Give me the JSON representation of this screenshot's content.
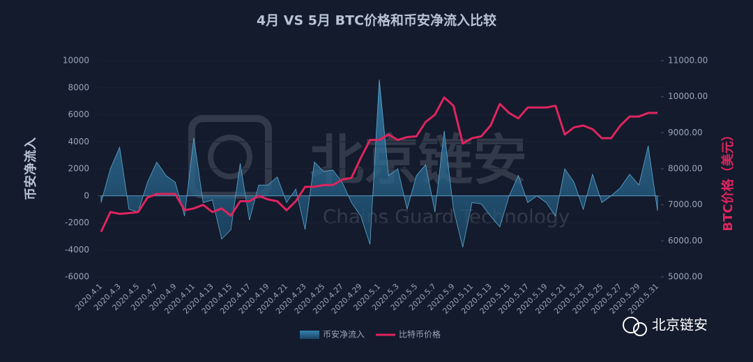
{
  "chart_data": {
    "type": "area-line",
    "title": "4月 VS 5月 BTC价格和币安净流入比较",
    "y_label": "币安净流入",
    "y2_label": "BTC价格（美元）",
    "categories": [
      "2020.4.1",
      null,
      "2020.4.3",
      null,
      "2020.4.5",
      null,
      "2020.4.7",
      null,
      "2020.4.9",
      null,
      "2020.4.11",
      null,
      "2020.4.13",
      null,
      "2020.4.15",
      null,
      "2020.4.17",
      null,
      "2020.4.19",
      null,
      "2020.4.21",
      null,
      "2020.4.23",
      null,
      "2020.4.25",
      null,
      "2020.4.27",
      null,
      "2020.4.29",
      null,
      "2020.5.1",
      null,
      "2020.5.3",
      null,
      "2020.5.5",
      null,
      "2020.5.7",
      null,
      "2020.5.9",
      null,
      "2020.5.11",
      null,
      "2020.5.13",
      null,
      "2020.5.15",
      null,
      "2020.5.17",
      null,
      "2020.5.19",
      null,
      "2020.5.21",
      null,
      "2020.5.23",
      null,
      "2020.5.25",
      null,
      "2020.5.27",
      null,
      "2020.5.29",
      null,
      "2020.5.31"
    ],
    "series": [
      {
        "name": "币安净流入",
        "kind": "area",
        "color": "#2f7aa3",
        "values": [
          -500,
          2000,
          3600,
          -1000,
          -1200,
          1000,
          2500,
          1500,
          1000,
          -1500,
          4300,
          -500,
          -300,
          -3200,
          -2500,
          2400,
          -1800,
          800,
          800,
          1400,
          -500,
          500,
          -2500,
          2500,
          1800,
          1900,
          1000,
          -500,
          -1500,
          -3600,
          8600,
          1500,
          2000,
          -1000,
          1500,
          2300,
          -1200,
          4800,
          -1000,
          -3800,
          -500,
          -600,
          -1500,
          -2300,
          0,
          1500,
          -500,
          0,
          -500,
          -1500,
          2000,
          1000,
          -1000,
          1600,
          -500,
          0,
          600,
          1600,
          800,
          3700,
          -1100
        ]
      },
      {
        "name": "比特币价格",
        "kind": "line",
        "axis": "y2",
        "color": "#e0245e",
        "values": [
          6250,
          6800,
          6750,
          6770,
          6800,
          7200,
          7300,
          7300,
          7300,
          6850,
          6900,
          7000,
          6800,
          6900,
          6700,
          7100,
          7100,
          7250,
          7150,
          7100,
          6850,
          7100,
          7500,
          7500,
          7550,
          7550,
          7700,
          7750,
          8300,
          8800,
          8800,
          8950,
          8800,
          8880,
          8900,
          9300,
          9500,
          9980,
          9750,
          8700,
          8850,
          8900,
          9200,
          9800,
          9550,
          9400,
          9700,
          9700,
          9700,
          9750,
          8950,
          9150,
          9200,
          9100,
          8850,
          8850,
          9200,
          9450,
          9450,
          9550,
          9550
        ]
      }
    ],
    "ylim": [
      -6000,
      10000
    ],
    "yticks": [
      -6000,
      -4000,
      -2000,
      0,
      2000,
      4000,
      6000,
      8000,
      10000
    ],
    "y2lim": [
      5000,
      11000
    ],
    "y2ticks": [
      {
        "value": 5000,
        "label": "5000.00"
      },
      {
        "value": 6000,
        "label": "6000.00"
      },
      {
        "value": 7000,
        "label": "7000.00"
      },
      {
        "value": 8000,
        "label": "8000.00"
      },
      {
        "value": 9000,
        "label": "9000.00"
      },
      {
        "value": 10000,
        "label": "10000.00"
      },
      {
        "value": 11000,
        "label": "11000.00"
      }
    ],
    "grid": true,
    "legend": "bottom"
  },
  "watermark": {
    "title": "北京链安",
    "subtitle": "Chains Guard Technology"
  },
  "brand": "北京链安"
}
